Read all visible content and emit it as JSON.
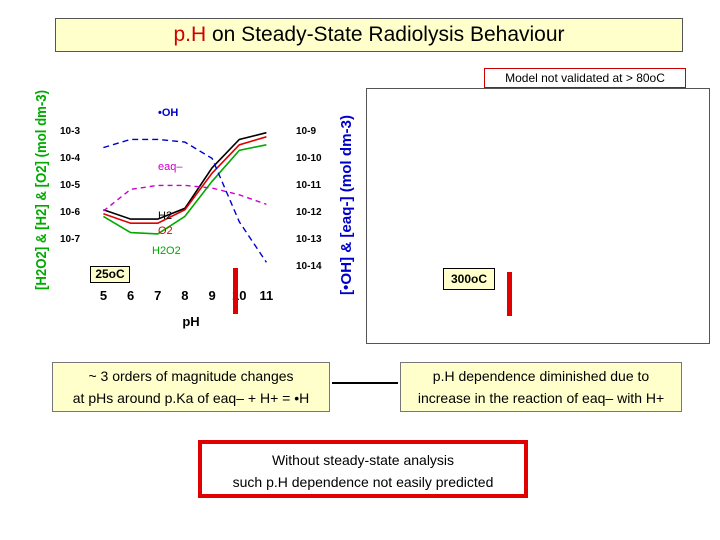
{
  "title": {
    "prefix": "p.H",
    "rest": " on Steady-State Radiolysis Behaviour"
  },
  "note": "Model not validated at > 80oC",
  "temp_25": "25oC",
  "temp_300": "300oC",
  "callout_left": {
    "line1": "~ 3 orders of magnitude changes",
    "line2": "at pHs around  p.Ka of eaq– + H+  = •H"
  },
  "callout_right": {
    "line1": "p.H dependence diminished due to",
    "line2": "increase in the reaction of eaq– with H+"
  },
  "bottom_box": {
    "line1": "Without steady-state analysis",
    "line2": "such p.H dependence not easily predicted"
  },
  "colors": {
    "red": "#e00000",
    "yellow": "#ffffcc",
    "h2": "#000000",
    "o2": "#e00000",
    "h2o2": "#00aa00",
    "oh": "#0000cc",
    "eaq": "#cc00cc"
  },
  "chart_data": {
    "type": "line",
    "xlabel": "pH",
    "x_ticks": [
      "5",
      "6",
      "7",
      "8",
      "9",
      "10",
      "11"
    ],
    "xlim": [
      4.8,
      11.5
    ],
    "ylabel_left": "[H2O2] & [H2] & [O2] (mol dm-3)",
    "ylabel_right": "[•OH] & [eaq-] (mol dm-3)",
    "y_left_ticks": [
      "10-3",
      "10-4",
      "10-5",
      "10-6",
      "10-7"
    ],
    "y_right_ticks": [
      "10-9",
      "10-10",
      "10-11",
      "10-12",
      "10-13",
      "10-14"
    ],
    "series_labels": {
      "oh": "•OH",
      "eaq": "eaq–",
      "h2": "H2",
      "o2": "O2",
      "h2o2": "H2O2"
    },
    "series": [
      {
        "key": "h2",
        "axis": "left",
        "color": "#000000",
        "dash": "",
        "x": [
          5,
          6,
          7,
          8,
          9,
          10,
          11
        ],
        "y": [
          -5.95,
          -6.3,
          -6.3,
          -5.9,
          -4.4,
          -3.35,
          -3.1
        ]
      },
      {
        "key": "o2",
        "axis": "left",
        "color": "#e00000",
        "dash": "",
        "x": [
          5,
          6,
          7,
          8,
          9,
          10,
          11
        ],
        "y": [
          -6.1,
          -6.45,
          -6.45,
          -5.95,
          -4.6,
          -3.55,
          -3.25
        ]
      },
      {
        "key": "h2o2",
        "axis": "left",
        "color": "#00aa00",
        "dash": "",
        "x": [
          5,
          6,
          7,
          8,
          9,
          10,
          11
        ],
        "y": [
          -6.2,
          -6.8,
          -6.85,
          -6.2,
          -4.9,
          -3.75,
          -3.55
        ]
      },
      {
        "key": "oh",
        "axis": "right",
        "color": "#0000cc",
        "dash": "6,4",
        "x": [
          5,
          6,
          7,
          8,
          9,
          10,
          11
        ],
        "y": [
          -9.65,
          -9.35,
          -9.35,
          -9.45,
          -10.05,
          -12.4,
          -13.9
        ]
      },
      {
        "key": "eaq",
        "axis": "right",
        "color": "#cc00cc",
        "dash": "5,4",
        "x": [
          5,
          6,
          7,
          8,
          9,
          10,
          11
        ],
        "y": [
          -12.0,
          -11.2,
          -11.05,
          -11.05,
          -11.15,
          -11.4,
          -11.75
        ]
      }
    ]
  }
}
